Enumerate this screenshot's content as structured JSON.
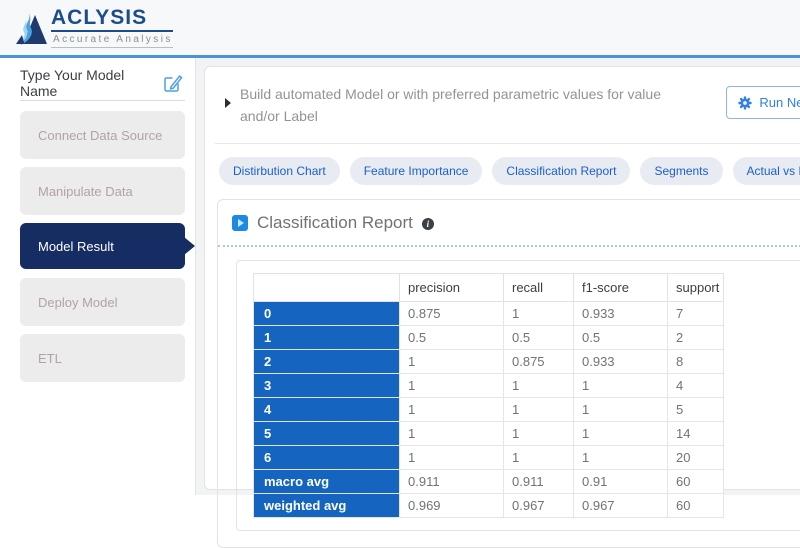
{
  "brand": {
    "name": "ACLYSIS",
    "tagline": "Accurate Analysis"
  },
  "sidebar": {
    "model_name_label": "Type Your Model Name",
    "items": [
      {
        "label": "Connect Data Source",
        "active": false
      },
      {
        "label": "Manipulate Data",
        "active": false
      },
      {
        "label": "Model Result",
        "active": true
      },
      {
        "label": "Deploy Model",
        "active": false
      },
      {
        "label": "ETL",
        "active": false
      }
    ]
  },
  "main": {
    "description": "Build automated Model or with preferred parametric values for value and/or Label",
    "run_button_label": "Run New Model",
    "tabs": [
      {
        "label": "Distirbution Chart",
        "active": false
      },
      {
        "label": "Feature Importance",
        "active": false
      },
      {
        "label": "Classification Report",
        "active": true
      },
      {
        "label": "Segments",
        "active": false
      },
      {
        "label": "Actual vs Prediction",
        "active": false
      }
    ],
    "report": {
      "title": "Classification Report",
      "table": {
        "columns": [
          "",
          "precision",
          "recall",
          "f1-score",
          "support"
        ],
        "rows": [
          {
            "label": "0",
            "values": [
              "0.875",
              "1",
              "0.933",
              "7"
            ]
          },
          {
            "label": "1",
            "values": [
              "0.5",
              "0.5",
              "0.5",
              "2"
            ]
          },
          {
            "label": "2",
            "values": [
              "1",
              "0.875",
              "0.933",
              "8"
            ]
          },
          {
            "label": "3",
            "values": [
              "1",
              "1",
              "1",
              "4"
            ]
          },
          {
            "label": "4",
            "values": [
              "1",
              "1",
              "1",
              "5"
            ]
          },
          {
            "label": "5",
            "values": [
              "1",
              "1",
              "1",
              "14"
            ]
          },
          {
            "label": "6",
            "values": [
              "1",
              "1",
              "1",
              "20"
            ]
          },
          {
            "label": "macro avg",
            "values": [
              "0.911",
              "0.911",
              "0.91",
              "60"
            ]
          },
          {
            "label": "weighted avg",
            "values": [
              "0.969",
              "0.967",
              "0.967",
              "60"
            ]
          }
        ]
      }
    }
  },
  "colors": {
    "accent_blue": "#2f80ed",
    "table_row_blue": "#1565c0",
    "active_navy": "#152d63",
    "brand_navy": "#1b4c8c",
    "header_line_blue": "#4d92d8",
    "scroll_thumb_blue": "#1b6fba",
    "tab_text_blue": "#1a5fd0"
  }
}
